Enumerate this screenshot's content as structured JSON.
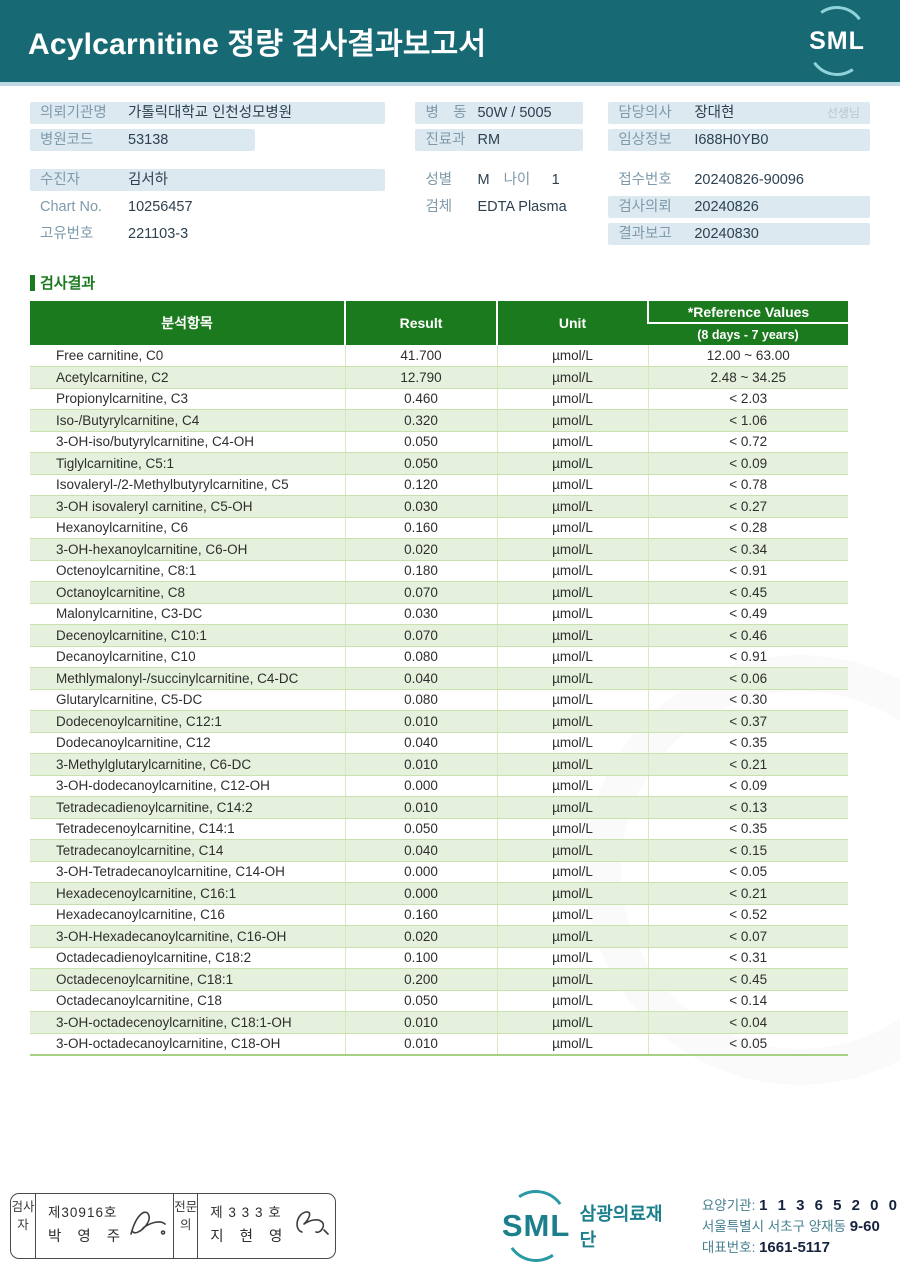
{
  "header": {
    "title": "Acylcarnitine 정량 검사결과보고서",
    "logo_text": "SML"
  },
  "colors": {
    "teal_header": "#176974",
    "table_green": "#1c7a1e",
    "row_tint": "#e6f1dd",
    "label_bg": "#dde9f1",
    "logo_teal": "#1b7f8c"
  },
  "patient": {
    "left": [
      {
        "label": "의뢰기관명",
        "value": "가톨릭대학교 인천성모병원",
        "bg": true
      },
      {
        "label": "병원코드",
        "value": "53138",
        "bg": true,
        "short": true
      },
      {
        "label": "수진자",
        "value": "김서하",
        "bg": true,
        "gap": true
      },
      {
        "label": "Chart No.",
        "value": "10256457"
      },
      {
        "label": "고유번호",
        "value": "221103-3"
      }
    ],
    "middle": [
      {
        "label": "병　동",
        "value": "50W / 5005",
        "bg": true
      },
      {
        "label": "진료과",
        "value": "RM",
        "bg": true
      },
      {
        "label": "성별",
        "value": "M",
        "label2": "나이",
        "value2": "1",
        "gap": true
      },
      {
        "label": "검체",
        "value": "EDTA Plasma"
      }
    ],
    "right": [
      {
        "label": "담당의사",
        "value": "장대현",
        "suffix": "선생님",
        "bg": true
      },
      {
        "label": "임상정보",
        "value": "I688H0YB0",
        "bg": true
      },
      {
        "label": "접수번호",
        "value": "20240826-90096",
        "gap": true
      },
      {
        "label": "검사의뢰",
        "value": "20240826",
        "bg": true
      },
      {
        "label": "결과보고",
        "value": "20240830",
        "bg": true
      }
    ]
  },
  "section_title": "검사결과",
  "table": {
    "headers": {
      "analyte": "분석항목",
      "result": "Result",
      "unit": "Unit",
      "ref_line1": "*Reference Values",
      "ref_line2": "(8 days - 7 years)"
    },
    "rows": [
      {
        "name": "Free carnitine, C0",
        "result": "41.700",
        "unit": "µmol/L",
        "ref": "12.00 ~ 63.00"
      },
      {
        "name": "Acetylcarnitine, C2",
        "result": "12.790",
        "unit": "µmol/L",
        "ref": "2.48 ~ 34.25"
      },
      {
        "name": "Propionylcarnitine, C3",
        "result": "0.460",
        "unit": "µmol/L",
        "ref": "< 2.03"
      },
      {
        "name": "Iso-/Butyrylcarnitine, C4",
        "result": "0.320",
        "unit": "µmol/L",
        "ref": "< 1.06"
      },
      {
        "name": "3-OH-iso/butyrylcarnitine, C4-OH",
        "result": "0.050",
        "unit": "µmol/L",
        "ref": "< 0.72"
      },
      {
        "name": "Tiglylcarnitine, C5:1",
        "result": "0.050",
        "unit": "µmol/L",
        "ref": "< 0.09"
      },
      {
        "name": "Isovaleryl-/2-Methylbutyrylcarnitine, C5",
        "result": "0.120",
        "unit": "µmol/L",
        "ref": "< 0.78"
      },
      {
        "name": "3-OH isovaleryl carnitine, C5-OH",
        "result": "0.030",
        "unit": "µmol/L",
        "ref": "< 0.27"
      },
      {
        "name": "Hexanoylcarnitine, C6",
        "result": "0.160",
        "unit": "µmol/L",
        "ref": "< 0.28"
      },
      {
        "name": "3-OH-hexanoylcarnitine, C6-OH",
        "result": "0.020",
        "unit": "µmol/L",
        "ref": "< 0.34"
      },
      {
        "name": "Octenoylcarnitine, C8:1",
        "result": "0.180",
        "unit": "µmol/L",
        "ref": "< 0.91"
      },
      {
        "name": "Octanoylcarnitine, C8",
        "result": "0.070",
        "unit": "µmol/L",
        "ref": "< 0.45"
      },
      {
        "name": "Malonylcarnitine, C3-DC",
        "result": "0.030",
        "unit": "µmol/L",
        "ref": "< 0.49"
      },
      {
        "name": "Decenoylcarnitine, C10:1",
        "result": "0.070",
        "unit": "µmol/L",
        "ref": "< 0.46"
      },
      {
        "name": "Decanoylcarnitine, C10",
        "result": "0.080",
        "unit": "µmol/L",
        "ref": "< 0.91"
      },
      {
        "name": "Methlymalonyl-/succinylcarnitine, C4-DC",
        "result": "0.040",
        "unit": "µmol/L",
        "ref": "< 0.06"
      },
      {
        "name": "Glutarylcarnitine, C5-DC",
        "result": "0.080",
        "unit": "µmol/L",
        "ref": "< 0.30"
      },
      {
        "name": "Dodecenoylcarnitine, C12:1",
        "result": "0.010",
        "unit": "µmol/L",
        "ref": "< 0.37"
      },
      {
        "name": "Dodecanoylcarnitine, C12",
        "result": "0.040",
        "unit": "µmol/L",
        "ref": "< 0.35"
      },
      {
        "name": "3-Methylglutarylcarnitine, C6-DC",
        "result": "0.010",
        "unit": "µmol/L",
        "ref": "< 0.21"
      },
      {
        "name": "3-OH-dodecanoylcarnitine, C12-OH",
        "result": "0.000",
        "unit": "µmol/L",
        "ref": "< 0.09"
      },
      {
        "name": "Tetradecadienoylcarnitine, C14:2",
        "result": "0.010",
        "unit": "µmol/L",
        "ref": "< 0.13"
      },
      {
        "name": "Tetradecenoylcarnitine, C14:1",
        "result": "0.050",
        "unit": "µmol/L",
        "ref": "< 0.35"
      },
      {
        "name": "Tetradecanoylcarnitine, C14",
        "result": "0.040",
        "unit": "µmol/L",
        "ref": "< 0.15"
      },
      {
        "name": "3-OH-Tetradecanoylcarnitine, C14-OH",
        "result": "0.000",
        "unit": "µmol/L",
        "ref": "< 0.05"
      },
      {
        "name": "Hexadecenoylcarnitine, C16:1",
        "result": "0.000",
        "unit": "µmol/L",
        "ref": "< 0.21"
      },
      {
        "name": "Hexadecanoylcarnitine, C16",
        "result": "0.160",
        "unit": "µmol/L",
        "ref": "< 0.52"
      },
      {
        "name": "3-OH-Hexadecanoylcarnitine, C16-OH",
        "result": "0.020",
        "unit": "µmol/L",
        "ref": "< 0.07"
      },
      {
        "name": "Octadecadienoylcarnitine, C18:2",
        "result": "0.100",
        "unit": "µmol/L",
        "ref": "< 0.31"
      },
      {
        "name": "Octadecenoylcarnitine, C18:1",
        "result": "0.200",
        "unit": "µmol/L",
        "ref": "< 0.45"
      },
      {
        "name": "Octadecanoylcarnitine, C18",
        "result": "0.050",
        "unit": "µmol/L",
        "ref": "< 0.14"
      },
      {
        "name": "3-OH-octadecenoylcarnitine, C18:1-OH",
        "result": "0.010",
        "unit": "µmol/L",
        "ref": "< 0.04"
      },
      {
        "name": "3-OH-octadecanoylcarnitine, C18-OH",
        "result": "0.010",
        "unit": "µmol/L",
        "ref": "< 0.05"
      }
    ]
  },
  "footer": {
    "examiner": {
      "role": "검사자",
      "no": "제30916호",
      "name": "박 영 주"
    },
    "specialist": {
      "role": "전문의",
      "no": "제 3 3 3 호",
      "name": "지 현 영"
    },
    "logo": {
      "text": "SML",
      "org": "삼광의료재단"
    },
    "info": [
      {
        "label": "요양기관:",
        "value": "1 1 3 6 5 2 0 0",
        "spaced": true
      },
      {
        "label": "서울특별시 서초구 양재동",
        "value": "9-60"
      },
      {
        "label": "대표번호:",
        "value": "1661-5117"
      }
    ]
  }
}
